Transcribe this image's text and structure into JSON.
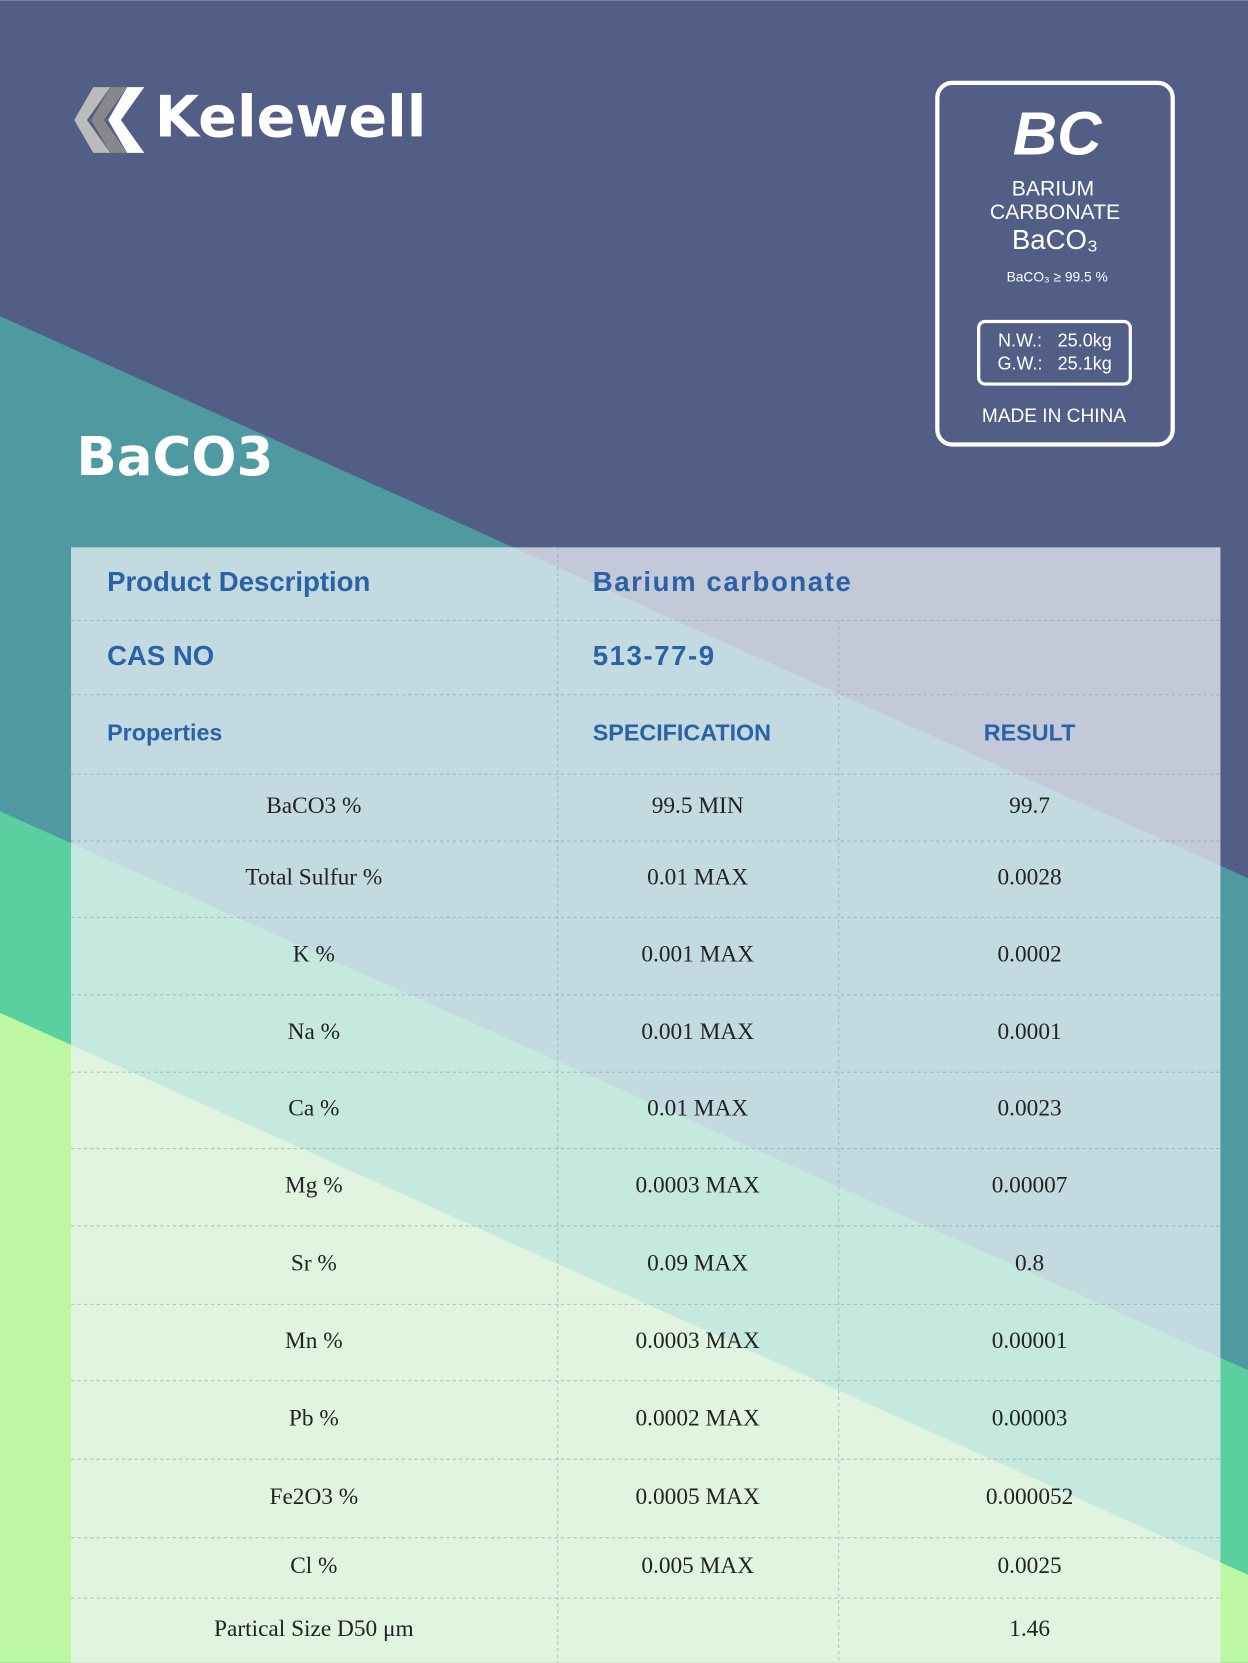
{
  "header": {
    "brand": "Kelewell",
    "title": "BaCO3"
  },
  "label": {
    "code": "BC",
    "name_line1": "BARIUM",
    "name_line2": "CARBONATE",
    "formula": "BaCO₃",
    "purity": "BaCO₃ ≥ 99.5 %",
    "nw_label": "N.W.:",
    "nw": "25.0kg",
    "gw_label": "G.W.:",
    "gw": "25.1kg",
    "origin": "MADE IN CHINA"
  },
  "table": {
    "description": [
      "Product Description",
      "Barium carbonate"
    ],
    "cas": [
      "CAS NO",
      "513-77-9"
    ],
    "columns": [
      "Properties",
      "SPECIFICATION",
      "RESULT"
    ],
    "rows": [
      [
        "BaCO3 %",
        "99.5 MIN",
        "99.7"
      ],
      [
        "Total Sulfur %",
        "0.01 MAX",
        "0.0028"
      ],
      [
        "K %",
        "0.001 MAX",
        "0.0002"
      ],
      [
        "Na %",
        "0.001 MAX",
        "0.0001"
      ],
      [
        "Ca %",
        "0.01 MAX",
        "0.0023"
      ],
      [
        "Mg %",
        "0.0003 MAX",
        "0.00007"
      ],
      [
        "Sr %",
        "0.09 MAX",
        "0.8"
      ],
      [
        "Mn %",
        "0.0003 MAX",
        "0.00001"
      ],
      [
        "Pb %",
        "0.0002 MAX",
        "0.00003"
      ],
      [
        "Fe2O3 %",
        "0.0005 MAX",
        "0.000052"
      ],
      [
        "Cl %",
        "0.005 MAX",
        "0.0025"
      ],
      [
        "Partical Size D50 μm",
        null,
        "1.46"
      ]
    ]
  }
}
